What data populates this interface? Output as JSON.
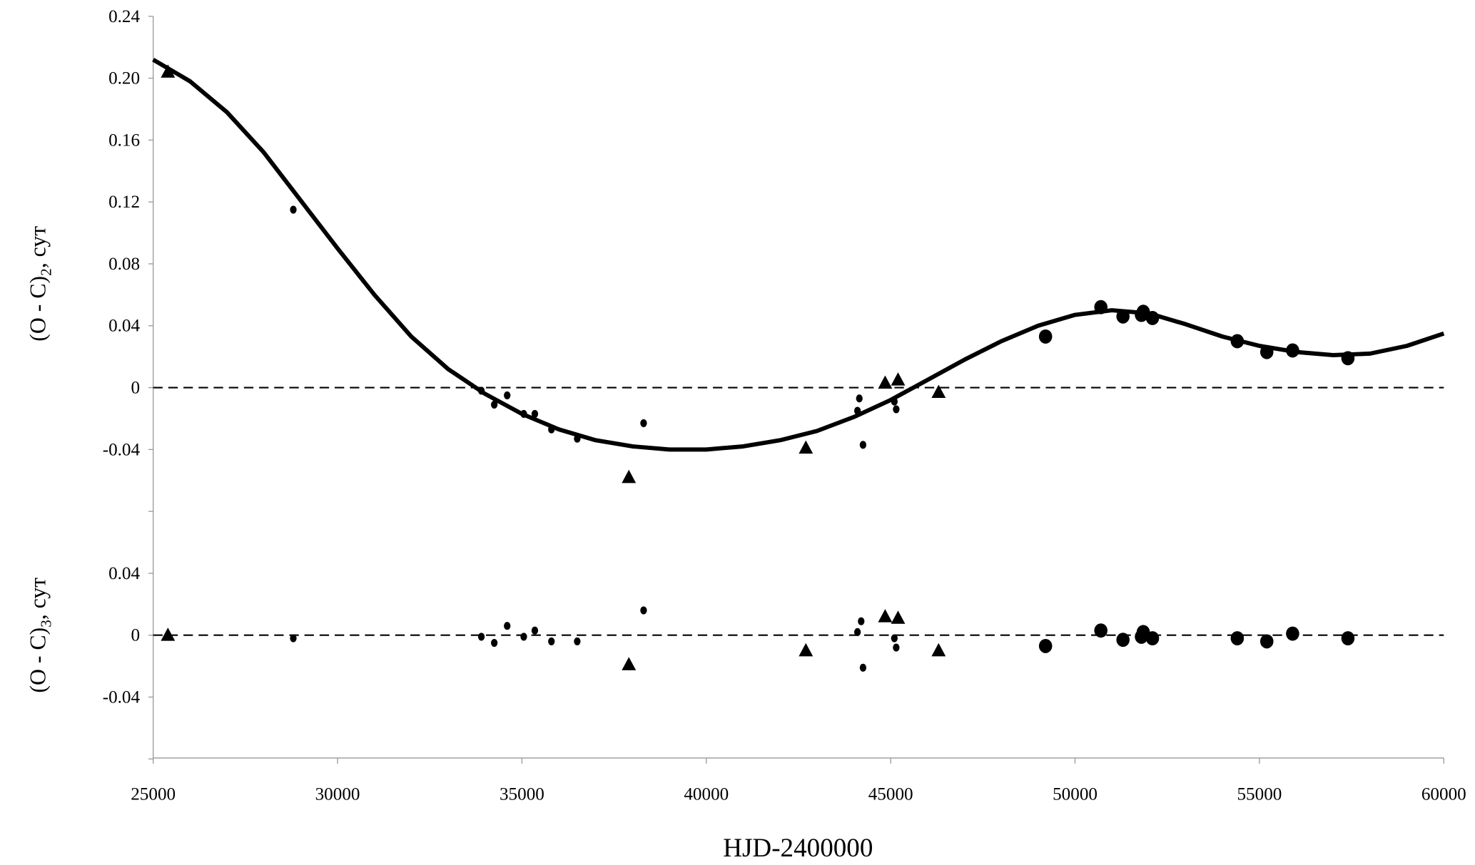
{
  "chart_data": [
    {
      "type": "scatter",
      "panel": "top",
      "ylabel_main": "(O - C)",
      "ylabel_sub": "2",
      "ylabel_unit": ", сут",
      "xlim": [
        25000,
        60000
      ],
      "ylim": [
        -0.08,
        0.24
      ],
      "yticks": [
        "0.24",
        "0.20",
        "0.16",
        "0.12",
        "0.08",
        "0.04",
        "0",
        "-0.04"
      ],
      "ytick_values": [
        0.24,
        0.2,
        0.16,
        0.12,
        0.08,
        0.04,
        0,
        -0.04
      ],
      "zero_line": "dashed",
      "series": [
        {
          "name": "triangles",
          "marker": "triangle",
          "points": [
            [
              25400,
              0.204
            ],
            [
              37900,
              -0.058
            ],
            [
              42700,
              -0.039
            ],
            [
              44850,
              0.003
            ],
            [
              45200,
              0.005
            ],
            [
              46300,
              -0.003
            ]
          ]
        },
        {
          "name": "small-dots",
          "marker": "small-circle",
          "points": [
            [
              28800,
              0.115
            ],
            [
              33900,
              -0.002
            ],
            [
              34250,
              -0.011
            ],
            [
              34600,
              -0.005
            ],
            [
              35050,
              -0.017
            ],
            [
              35350,
              -0.017
            ],
            [
              35800,
              -0.027
            ],
            [
              36500,
              -0.033
            ],
            [
              38300,
              -0.023
            ],
            [
              44100,
              -0.015
            ],
            [
              44150,
              -0.007
            ],
            [
              44250,
              -0.037
            ],
            [
              45100,
              -0.009
            ],
            [
              45150,
              -0.014
            ]
          ]
        },
        {
          "name": "large-dots",
          "marker": "large-circle",
          "points": [
            [
              49200,
              0.033
            ],
            [
              50700,
              0.052
            ],
            [
              51300,
              0.046
            ],
            [
              51800,
              0.047
            ],
            [
              51850,
              0.049
            ],
            [
              52100,
              0.045
            ],
            [
              54400,
              0.03
            ],
            [
              55200,
              0.023
            ],
            [
              55900,
              0.024
            ],
            [
              57400,
              0.019
            ]
          ]
        },
        {
          "name": "fit",
          "marker": "line",
          "points": [
            [
              25000,
              0.212
            ],
            [
              26000,
              0.198
            ],
            [
              27000,
              0.178
            ],
            [
              28000,
              0.152
            ],
            [
              29000,
              0.121
            ],
            [
              30000,
              0.09
            ],
            [
              31000,
              0.06
            ],
            [
              32000,
              0.033
            ],
            [
              33000,
              0.012
            ],
            [
              34000,
              -0.004
            ],
            [
              35000,
              -0.017
            ],
            [
              36000,
              -0.027
            ],
            [
              37000,
              -0.034
            ],
            [
              38000,
              -0.038
            ],
            [
              39000,
              -0.04
            ],
            [
              40000,
              -0.04
            ],
            [
              41000,
              -0.038
            ],
            [
              42000,
              -0.034
            ],
            [
              43000,
              -0.028
            ],
            [
              44000,
              -0.019
            ],
            [
              45000,
              -0.008
            ],
            [
              46000,
              0.005
            ],
            [
              47000,
              0.018
            ],
            [
              48000,
              0.03
            ],
            [
              49000,
              0.04
            ],
            [
              50000,
              0.047
            ],
            [
              51000,
              0.05
            ],
            [
              52000,
              0.048
            ],
            [
              53000,
              0.041
            ],
            [
              54000,
              0.033
            ],
            [
              55000,
              0.027
            ],
            [
              56000,
              0.023
            ],
            [
              57000,
              0.021
            ],
            [
              58000,
              0.022
            ],
            [
              59000,
              0.027
            ],
            [
              60000,
              0.035
            ]
          ]
        }
      ]
    },
    {
      "type": "scatter",
      "panel": "bottom",
      "ylabel_main": "(O - C)",
      "ylabel_sub": "3",
      "ylabel_unit": ", сут",
      "xlabel": "HJD-2400000",
      "xlim": [
        25000,
        60000
      ],
      "ylim": [
        -0.08,
        0.04
      ],
      "xticks": [
        "25000",
        "30000",
        "35000",
        "40000",
        "45000",
        "50000",
        "55000",
        "60000"
      ],
      "xtick_values": [
        25000,
        30000,
        35000,
        40000,
        45000,
        50000,
        55000,
        60000
      ],
      "yticks": [
        "0.04",
        "0",
        "-0.04"
      ],
      "ytick_values": [
        0.04,
        0,
        -0.04
      ],
      "zero_line": "dashed",
      "series": [
        {
          "name": "triangles",
          "marker": "triangle",
          "points": [
            [
              25400,
              0.0
            ],
            [
              37900,
              -0.019
            ],
            [
              42700,
              -0.01
            ],
            [
              44850,
              0.012
            ],
            [
              45200,
              0.011
            ],
            [
              46300,
              -0.01
            ]
          ]
        },
        {
          "name": "small-dots",
          "marker": "small-circle",
          "points": [
            [
              28800,
              -0.002
            ],
            [
              33900,
              -0.001
            ],
            [
              34250,
              -0.005
            ],
            [
              34600,
              0.006
            ],
            [
              35050,
              -0.001
            ],
            [
              35350,
              0.003
            ],
            [
              35800,
              -0.004
            ],
            [
              36500,
              -0.004
            ],
            [
              38300,
              0.016
            ],
            [
              44100,
              0.002
            ],
            [
              44200,
              0.009
            ],
            [
              44250,
              -0.021
            ],
            [
              45100,
              -0.002
            ],
            [
              45150,
              -0.008
            ]
          ]
        },
        {
          "name": "large-dots",
          "marker": "large-circle",
          "points": [
            [
              49200,
              -0.007
            ],
            [
              50700,
              0.003
            ],
            [
              51300,
              -0.003
            ],
            [
              51800,
              -0.001
            ],
            [
              51850,
              0.002
            ],
            [
              52100,
              -0.002
            ],
            [
              54400,
              -0.002
            ],
            [
              55200,
              -0.004
            ],
            [
              55900,
              0.001
            ],
            [
              57400,
              -0.002
            ]
          ]
        }
      ]
    }
  ]
}
